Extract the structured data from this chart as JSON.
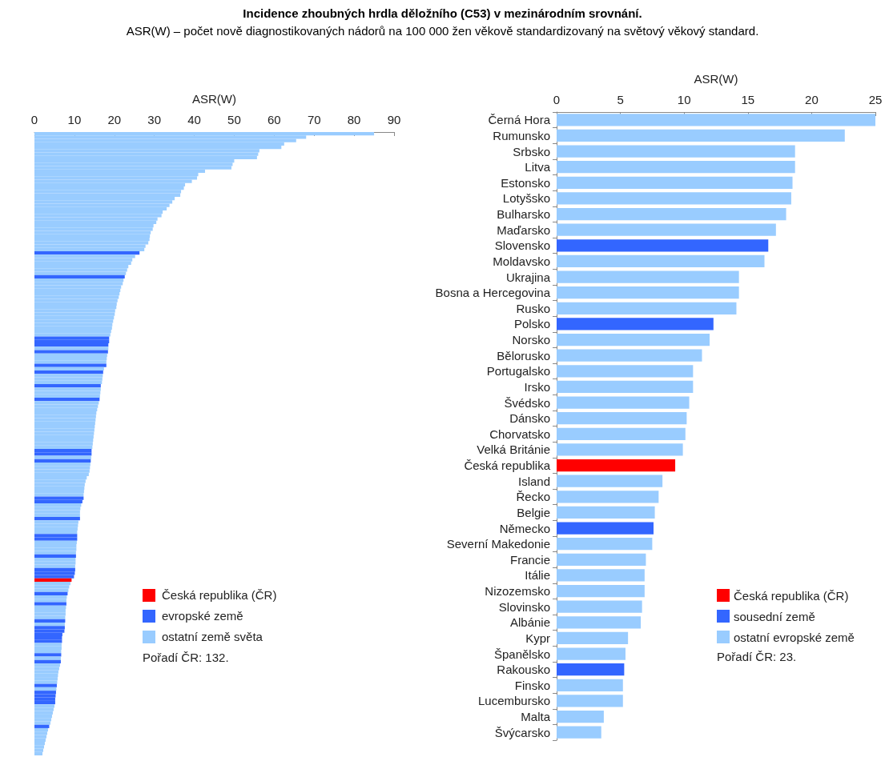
{
  "chart_data": [
    {
      "type": "bar",
      "orientation": "horizontal",
      "title": "Incidence zhoubných hrdla děložního (C53) v mezinárodním srovnání.",
      "subtitle": "ASR(W) – počet nově diagnostikovaných nádorů na 100 000 žen věkově standardizovaný na světový věkový standard.",
      "xlabel": "ASR(W)",
      "xlim": [
        0,
        90
      ],
      "xticks": [
        0,
        10,
        20,
        30,
        40,
        50,
        60,
        70,
        80,
        90
      ],
      "grid": false,
      "tick_labels": "x",
      "annotations": [
        "Česká republika (ČR)",
        "evropské země",
        "ostatní země světa",
        "Pořadí ČR: 132."
      ],
      "categories": [
        null,
        null,
        null,
        null,
        null,
        null,
        null,
        null,
        null,
        null,
        null,
        null,
        null,
        null,
        null,
        null,
        null,
        null,
        null,
        null,
        null,
        null,
        null,
        null,
        null,
        null,
        null,
        null,
        null,
        null,
        null,
        null,
        null,
        null,
        null,
        null,
        null,
        null,
        null,
        null,
        null,
        null,
        null,
        null,
        null,
        null,
        null,
        null,
        null,
        null,
        null,
        null,
        null,
        null,
        null,
        null,
        null,
        null,
        null,
        null,
        null,
        null,
        null,
        null,
        null,
        null,
        null,
        null,
        null,
        null,
        null,
        null,
        null,
        null,
        null,
        null,
        null,
        null,
        null,
        null,
        null,
        null,
        null,
        null,
        null,
        null,
        null,
        null,
        null,
        null,
        null,
        null,
        null,
        null,
        null,
        null,
        null,
        null,
        null,
        null,
        null,
        null,
        null,
        null,
        null,
        null,
        null,
        null,
        null,
        null,
        null,
        null,
        null,
        null,
        null,
        null,
        null,
        null,
        null,
        null,
        null,
        null,
        null,
        null,
        null,
        null,
        null,
        null,
        null,
        null,
        null,
        null,
        null,
        null,
        null,
        null,
        null,
        null,
        null,
        null,
        null,
        null,
        null,
        null,
        null,
        null,
        null,
        null,
        null,
        null,
        null,
        null,
        null,
        null,
        null,
        null,
        null,
        null,
        null,
        null,
        null,
        null,
        null,
        null,
        null,
        null,
        null,
        null,
        null,
        null,
        null,
        null,
        null,
        null,
        null,
        null,
        null,
        null,
        null,
        null,
        null,
        null,
        null
      ],
      "values": [
        85,
        68,
        65.5,
        62.5,
        61.8,
        56.3,
        56,
        55.7,
        50,
        49.6,
        49.3,
        42.7,
        41,
        40.7,
        39.4,
        37.7,
        37.4,
        36.7,
        36.5,
        35.1,
        34.5,
        33.8,
        33.1,
        32.1,
        31.8,
        30.8,
        30.5,
        29.8,
        29.6,
        29.1,
        28.9,
        28.8,
        28.5,
        27.8,
        27.5,
        26.3,
        25.2,
        24.5,
        24.2,
        23.5,
        23.2,
        22.9,
        22.6,
        22.3,
        22.1,
        21.7,
        21.5,
        21.3,
        21.1,
        20.8,
        20.6,
        20.5,
        20.2,
        20.1,
        19.9,
        19.7,
        19.5,
        19.4,
        19.2,
        19.0,
        18.7,
        18.7,
        18.5,
        18.5,
        18.4,
        18.2,
        18.1,
        18.0,
        18.0,
        17.4,
        17.2,
        17.1,
        17.0,
        16.9,
        16.6,
        16.6,
        16.5,
        16.4,
        16.3,
        16.1,
        15.9,
        15.7,
        15.5,
        15.4,
        15.3,
        15.2,
        15.1,
        15.0,
        14.9,
        14.8,
        14.7,
        14.6,
        14.5,
        14.3,
        14.3,
        14.2,
        14.1,
        14.0,
        13.9,
        13.8,
        13.6,
        13.1,
        12.8,
        12.6,
        12.5,
        12.4,
        12.3,
        12.3,
        12.0,
        11.7,
        11.5,
        11.4,
        11.4,
        11.4,
        11.0,
        10.9,
        10.8,
        10.7,
        10.7,
        10.7,
        10.6,
        10.5,
        10.5,
        10.4,
        10.4,
        10.3,
        10.3,
        10.2,
        10.2,
        10.1,
        9.9,
        9.3,
        9.0,
        8.7,
        8.5,
        8.3,
        8.1,
        8.0,
        8.0,
        7.9,
        7.8,
        7.8,
        7.7,
        7.7,
        7.6,
        7.6,
        7.5,
        7.0,
        6.9,
        6.9,
        6.8,
        6.8,
        6.7,
        6.7,
        6.6,
        6.6,
        6.4,
        6.2,
        6.0,
        5.9,
        5.8,
        5.7,
        5.6,
        5.5,
        5.4,
        5.3,
        5.2,
        5.2,
        5.0,
        4.8,
        4.6,
        4.4,
        4.2,
        4.0,
        3.7,
        3.4,
        3.2,
        3.0,
        2.8,
        2.6,
        2.4,
        2.2,
        2.0
      ],
      "colors": [
        "#99ccff",
        "#99ccff",
        "#99ccff",
        "#99ccff",
        "#99ccff",
        "#99ccff",
        "#99ccff",
        "#99ccff",
        "#99ccff",
        "#99ccff",
        "#99ccff",
        "#99ccff",
        "#99ccff",
        "#99ccff",
        "#99ccff",
        "#99ccff",
        "#99ccff",
        "#99ccff",
        "#99ccff",
        "#99ccff",
        "#99ccff",
        "#99ccff",
        "#99ccff",
        "#99ccff",
        "#99ccff",
        "#99ccff",
        "#99ccff",
        "#99ccff",
        "#99ccff",
        "#99ccff",
        "#99ccff",
        "#99ccff",
        "#99ccff",
        "#99ccff",
        "#99ccff",
        "#3366ff",
        "#99ccff",
        "#99ccff",
        "#99ccff",
        "#99ccff",
        "#99ccff",
        "#99ccff",
        "#3366ff",
        "#99ccff",
        "#99ccff",
        "#99ccff",
        "#99ccff",
        "#99ccff",
        "#99ccff",
        "#99ccff",
        "#99ccff",
        "#99ccff",
        "#99ccff",
        "#99ccff",
        "#99ccff",
        "#99ccff",
        "#99ccff",
        "#99ccff",
        "#99ccff",
        "#99ccff",
        "#3366ff",
        "#3366ff",
        "#3366ff",
        "#99ccff",
        "#3366ff",
        "#99ccff",
        "#99ccff",
        "#99ccff",
        "#3366ff",
        "#99ccff",
        "#3366ff",
        "#99ccff",
        "#99ccff",
        "#99ccff",
        "#3366ff",
        "#99ccff",
        "#99ccff",
        "#99ccff",
        "#3366ff",
        "#99ccff",
        "#99ccff",
        "#99ccff",
        "#99ccff",
        "#99ccff",
        "#99ccff",
        "#99ccff",
        "#99ccff",
        "#99ccff",
        "#99ccff",
        "#99ccff",
        "#99ccff",
        "#99ccff",
        "#99ccff",
        "#3366ff",
        "#3366ff",
        "#99ccff",
        "#3366ff",
        "#99ccff",
        "#99ccff",
        "#99ccff",
        "#99ccff",
        "#99ccff",
        "#99ccff",
        "#99ccff",
        "#99ccff",
        "#99ccff",
        "#99ccff",
        "#3366ff",
        "#3366ff",
        "#99ccff",
        "#99ccff",
        "#99ccff",
        "#99ccff",
        "#3366ff",
        "#99ccff",
        "#99ccff",
        "#99ccff",
        "#99ccff",
        "#3366ff",
        "#3366ff",
        "#99ccff",
        "#99ccff",
        "#99ccff",
        "#99ccff",
        "#3366ff",
        "#99ccff",
        "#99ccff",
        "#99ccff",
        "#3366ff",
        "#3366ff",
        "#3366ff",
        "#ff0000",
        "#99ccff",
        "#99ccff",
        "#99ccff",
        "#3366ff",
        "#99ccff",
        "#99ccff",
        "#3366ff",
        "#99ccff",
        "#99ccff",
        "#99ccff",
        "#99ccff",
        "#3366ff",
        "#99ccff",
        "#3366ff",
        "#3366ff",
        "#3366ff",
        "#3366ff",
        "#3366ff",
        "#99ccff",
        "#99ccff",
        "#99ccff",
        "#3366ff",
        "#99ccff",
        "#3366ff",
        "#99ccff",
        "#99ccff",
        "#99ccff",
        "#99ccff",
        "#99ccff",
        "#99ccff",
        "#3366ff",
        "#99ccff",
        "#3366ff",
        "#3366ff",
        "#3366ff",
        "#3366ff",
        "#99ccff",
        "#99ccff",
        "#99ccff",
        "#99ccff",
        "#99ccff",
        "#99ccff",
        "#3366ff",
        "#99ccff",
        "#99ccff",
        "#99ccff",
        "#99ccff",
        "#99ccff",
        "#99ccff",
        "#99ccff",
        "#99ccff"
      ]
    },
    {
      "type": "bar",
      "orientation": "horizontal",
      "xlabel": "ASR(W)",
      "xlim": [
        0,
        25
      ],
      "xticks": [
        0,
        5,
        10,
        15,
        20,
        25
      ],
      "grid": false,
      "legend": "bottom right",
      "annotations": [
        "Pořadí ČR: 23."
      ],
      "categories": [
        "Černá Hora",
        "Rumunsko",
        "Srbsko",
        "Litva",
        "Estonsko",
        "Lotyšsko",
        "Bulharsko",
        "Maďarsko",
        "Slovensko",
        "Moldavsko",
        "Ukrajina",
        "Bosna a Hercegovina",
        "Rusko",
        "Polsko",
        "Norsko",
        "Bělorusko",
        "Portugalsko",
        "Irsko",
        "Švédsko",
        "Dánsko",
        "Chorvatsko",
        "Velká Británie",
        "Česká republika",
        "Island",
        "Řecko",
        "Belgie",
        "Německo",
        "Severní Makedonie",
        "Francie",
        "Itálie",
        "Nizozemsko",
        "Slovinsko",
        "Albánie",
        "Kypr",
        "Španělsko",
        "Rakousko",
        "Finsko",
        "Lucembursko",
        "Malta",
        "Švýcarsko"
      ],
      "series": [
        {
          "name": "Česká republika (ČR)",
          "color": "#ff0000",
          "values": [
            null,
            null,
            null,
            null,
            null,
            null,
            null,
            null,
            null,
            null,
            null,
            null,
            null,
            null,
            null,
            null,
            null,
            null,
            null,
            null,
            null,
            null,
            9.3,
            null,
            null,
            null,
            null,
            null,
            null,
            null,
            null,
            null,
            null,
            null,
            null,
            null,
            null,
            null,
            null,
            null
          ]
        },
        {
          "name": "sousední země",
          "color": "#3366ff",
          "values": [
            null,
            null,
            null,
            null,
            null,
            null,
            null,
            null,
            16.6,
            null,
            null,
            null,
            null,
            12.3,
            null,
            null,
            null,
            null,
            null,
            null,
            null,
            null,
            null,
            null,
            null,
            null,
            7.6,
            null,
            null,
            null,
            null,
            null,
            null,
            null,
            null,
            5.3,
            null,
            null,
            null,
            null
          ]
        },
        {
          "name": "ostatní evropské země",
          "color": "#99ccff",
          "values": [
            25,
            22.6,
            18.7,
            18.7,
            18.5,
            18.4,
            18.0,
            17.2,
            null,
            16.3,
            14.3,
            14.3,
            14.1,
            null,
            12.0,
            11.4,
            10.7,
            10.7,
            10.4,
            10.2,
            10.1,
            9.9,
            null,
            8.3,
            8.0,
            7.7,
            null,
            7.5,
            7.0,
            6.9,
            6.9,
            6.7,
            6.6,
            5.6,
            5.4,
            null,
            5.2,
            5.2,
            3.7,
            3.5
          ]
        }
      ]
    }
  ]
}
